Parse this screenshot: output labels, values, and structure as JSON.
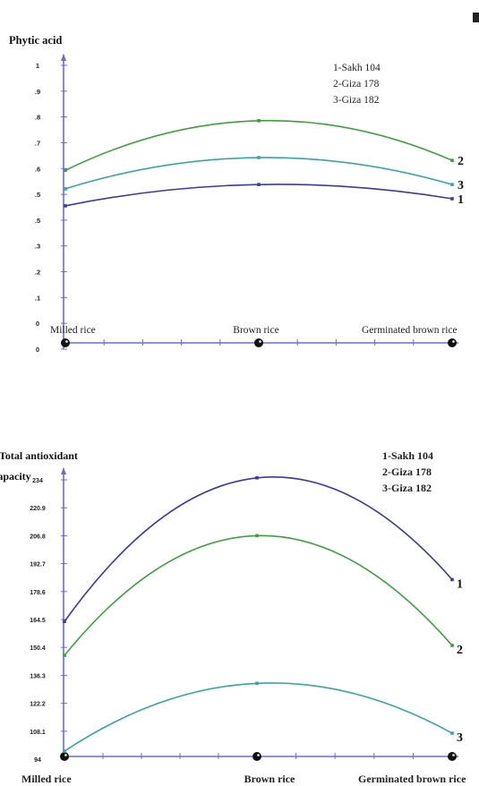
{
  "chart_data": [
    {
      "type": "line",
      "ylabel": "Phytic acid",
      "xlabel": "",
      "categories": [
        "Milled rice",
        "Brown rice",
        "Germinated brown rice"
      ],
      "yticks": [
        "0",
        "0",
        ".1",
        ".2",
        ".3",
        ".5",
        ".5",
        ".6",
        ".7",
        ".8",
        ".9",
        "1"
      ],
      "ylim": [
        0,
        1
      ],
      "legend": [
        "1-Sakh 104",
        "2-Giza 178",
        "3-Giza 182"
      ],
      "legend_position": "top-right",
      "series": [
        {
          "name": "1",
          "color": "#3a3aa0",
          "values": [
            0.505,
            0.58,
            0.53
          ]
        },
        {
          "name": "2",
          "color": "#3ca03c",
          "values": [
            0.63,
            0.805,
            0.665
          ]
        },
        {
          "name": "3",
          "color": "#38a6a0",
          "values": [
            0.565,
            0.675,
            0.58
          ]
        }
      ]
    },
    {
      "type": "line",
      "ylabel": "Total antioxidant capacity",
      "xlabel": "",
      "categories": [
        "Milled rice",
        "Brown rice",
        "Germinated brown rice"
      ],
      "yticks": [
        "94",
        "108.1",
        "122.2",
        "136.3",
        "150.4",
        "164.5",
        "178.6",
        "192.7",
        "206.8",
        "220.9",
        "234"
      ],
      "ylim": [
        94,
        234
      ],
      "legend": [
        "1-Sakh 104",
        "2-Giza 178",
        "3-Giza 182"
      ],
      "legend_position": "top-right",
      "series": [
        {
          "name": "1",
          "color": "#3a3aa0",
          "values": [
            163,
            235,
            184
          ]
        },
        {
          "name": "2",
          "color": "#3ca03c",
          "values": [
            146,
            206,
            151
          ]
        },
        {
          "name": "3",
          "color": "#38a6a0",
          "values": [
            98,
            132,
            107
          ]
        }
      ]
    }
  ]
}
